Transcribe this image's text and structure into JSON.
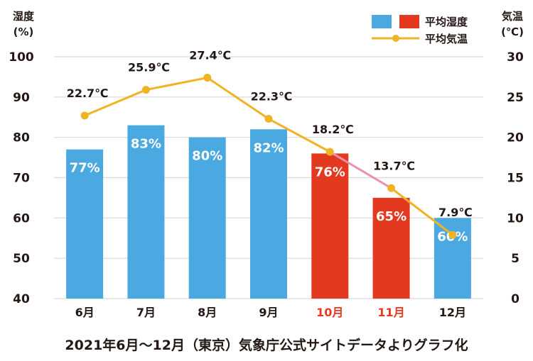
{
  "chart_data": {
    "type": "bar",
    "categories": [
      "6月",
      "7月",
      "8月",
      "9月",
      "10月",
      "11月",
      "12月"
    ],
    "highlight_categories": [
      "10月",
      "11月"
    ],
    "series": [
      {
        "name": "平均湿度",
        "axis": "left",
        "values": [
          77,
          83,
          80,
          82,
          76,
          65,
          60
        ],
        "labels": [
          "77%",
          "83%",
          "80%",
          "82%",
          "76%",
          "65%",
          "60%"
        ]
      },
      {
        "name": "平均気温",
        "axis": "right",
        "type": "line",
        "values": [
          22.7,
          25.9,
          27.4,
          22.3,
          18.2,
          13.7,
          7.9
        ],
        "labels": [
          "22.7℃",
          "25.9℃",
          "27.4℃",
          "22.3℃",
          "18.2℃",
          "13.7℃",
          "7.9℃"
        ]
      }
    ],
    "y_left": {
      "label_line1": "湿度",
      "label_line2": "(%)",
      "ylim": [
        40,
        100
      ],
      "ticks": [
        40,
        50,
        60,
        70,
        80,
        90,
        100
      ]
    },
    "y_right": {
      "label_line1": "気温",
      "label_line2": "(℃)",
      "ylim": [
        0,
        30
      ],
      "ticks": [
        0,
        5,
        10,
        15,
        20,
        25,
        30
      ]
    },
    "legend": {
      "position": "top-right",
      "humidity": "平均湿度",
      "temperature": "平均気温"
    },
    "footnote": "2021年6月〜12月（東京）気象庁公式サイトデータよりグラフ化",
    "colors": {
      "bar_normal": "#4ba9e2",
      "bar_highlight": "#e3391f",
      "line": "#f0b323",
      "line_highlight": "#ec90b3",
      "xtick_normal": "#231815",
      "xtick_highlight": "#e3391f"
    }
  }
}
